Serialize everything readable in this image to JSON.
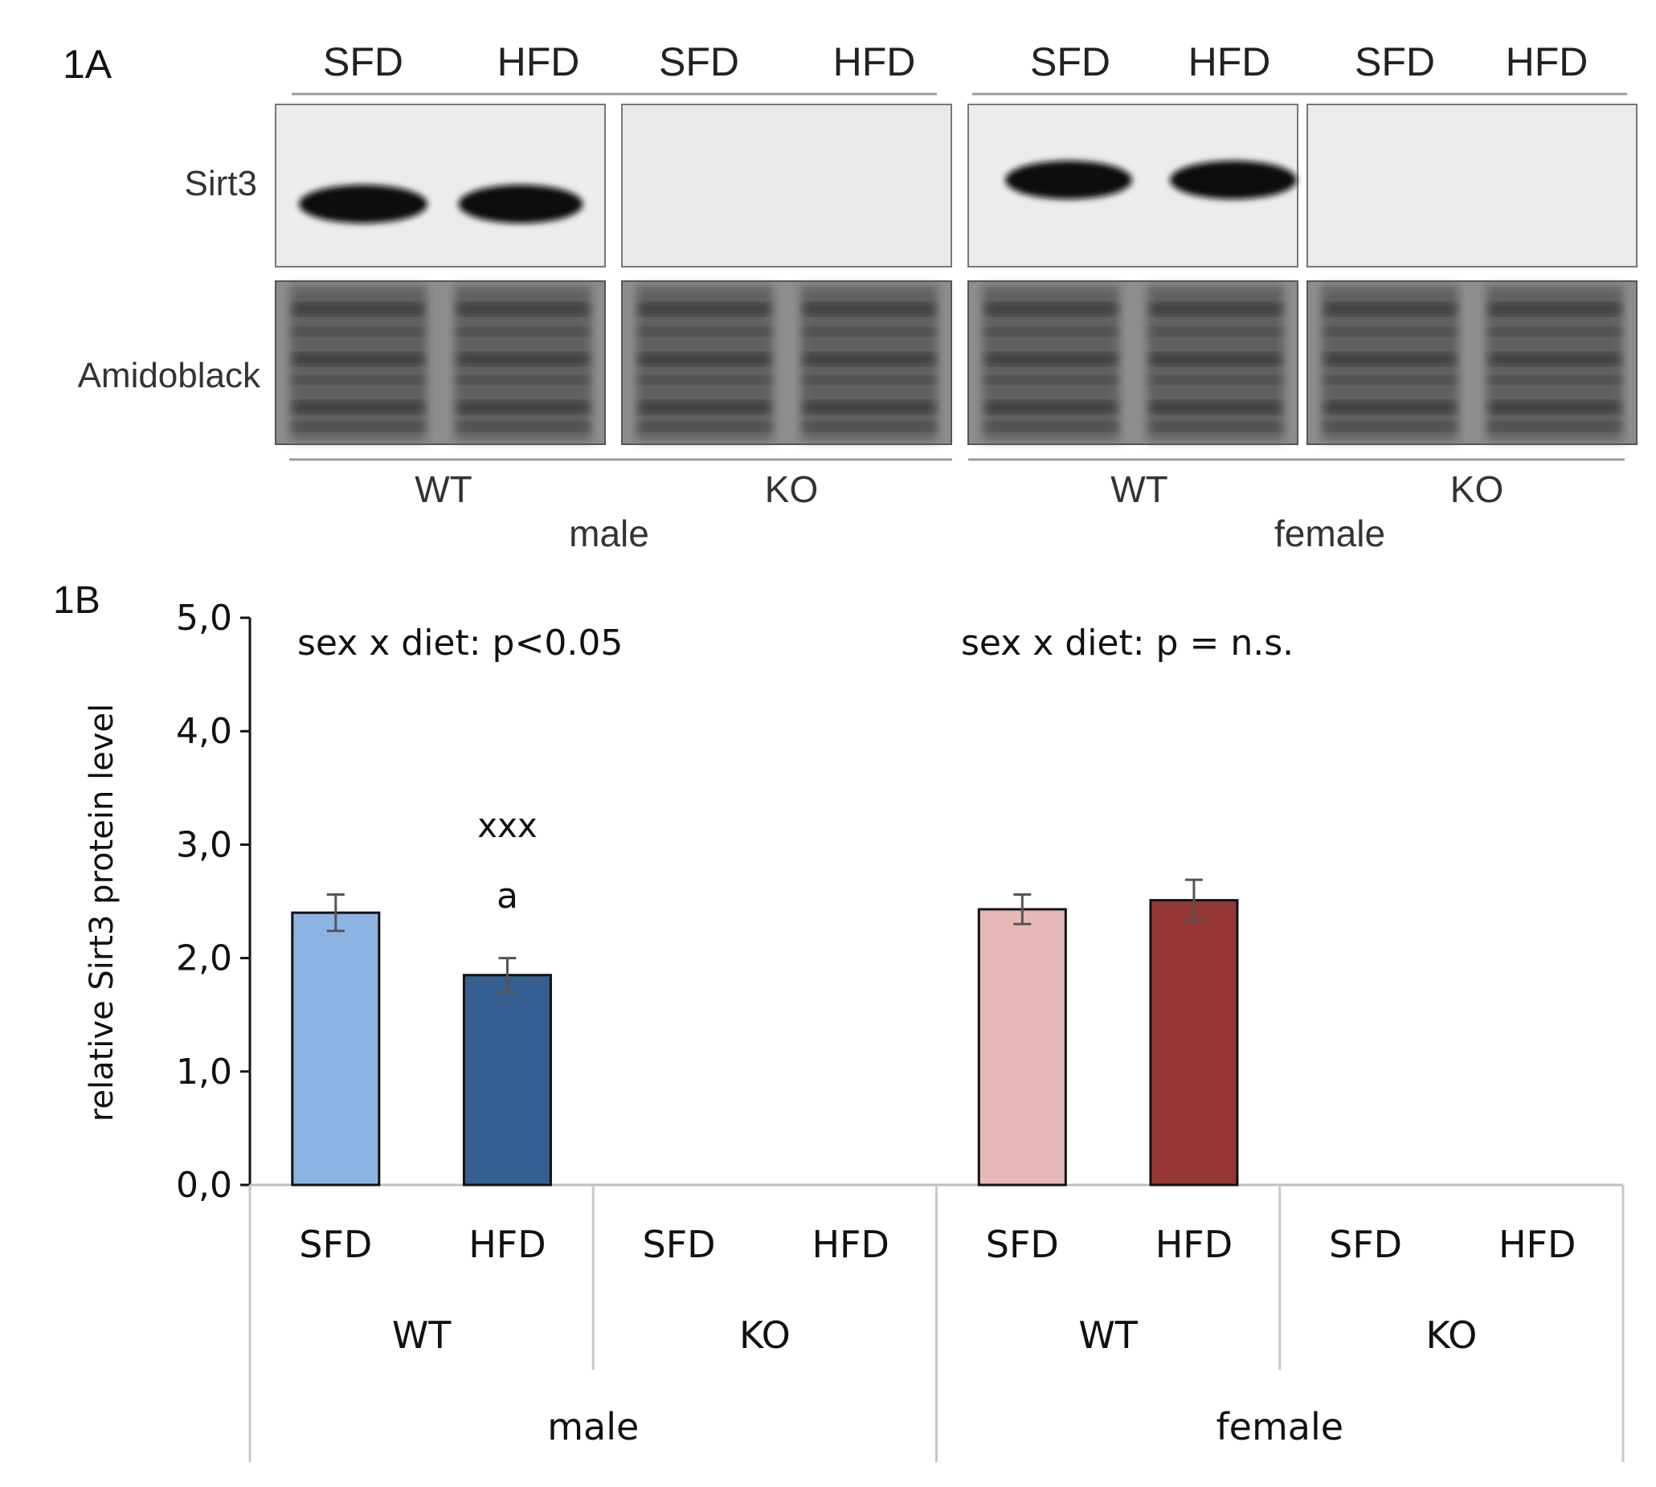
{
  "panel_a": {
    "label": "1A",
    "row_labels": [
      "Sirt3",
      "Amidoblack"
    ],
    "lane_labels": [
      "SFD",
      "HFD",
      "SFD",
      "HFD",
      "SFD",
      "HFD",
      "SFD",
      "HFD"
    ],
    "genotype_labels": [
      "WT",
      "KO",
      "WT",
      "KO"
    ],
    "sex_labels": [
      "male",
      "female"
    ],
    "sirt3_band_present": [
      true,
      true,
      false,
      false,
      true,
      true,
      false,
      false
    ]
  },
  "panel_b": {
    "label": "1B"
  },
  "chart_data": {
    "type": "bar",
    "ylabel": "relative Sirt3 protein level",
    "ylim": [
      0,
      5
    ],
    "yticks": [
      "0,0",
      "1,0",
      "2,0",
      "3,0",
      "4,0",
      "5,0"
    ],
    "categories": [
      "SFD",
      "HFD",
      "SFD",
      "HFD",
      "SFD",
      "HFD",
      "SFD",
      "HFD"
    ],
    "genotype_groups": [
      "WT",
      "KO",
      "WT",
      "KO"
    ],
    "sex_groups": [
      "male",
      "female"
    ],
    "values": [
      2.4,
      1.85,
      0,
      0,
      2.43,
      2.51,
      0,
      0
    ],
    "errors": [
      0.16,
      0.15,
      0,
      0,
      0.13,
      0.18,
      0,
      0
    ],
    "bar_colors": [
      "#8db3e2",
      "#365f91",
      "#ffffff",
      "#ffffff",
      "#e6b9b8",
      "#953735",
      "#ffffff",
      "#ffffff"
    ],
    "annotations": {
      "male_stat": "sex x diet: p<0.05",
      "female_stat": "sex x diet: p = n.s.",
      "hfd_male_sig_top": "xxx",
      "hfd_male_sig_bottom": "a"
    }
  }
}
